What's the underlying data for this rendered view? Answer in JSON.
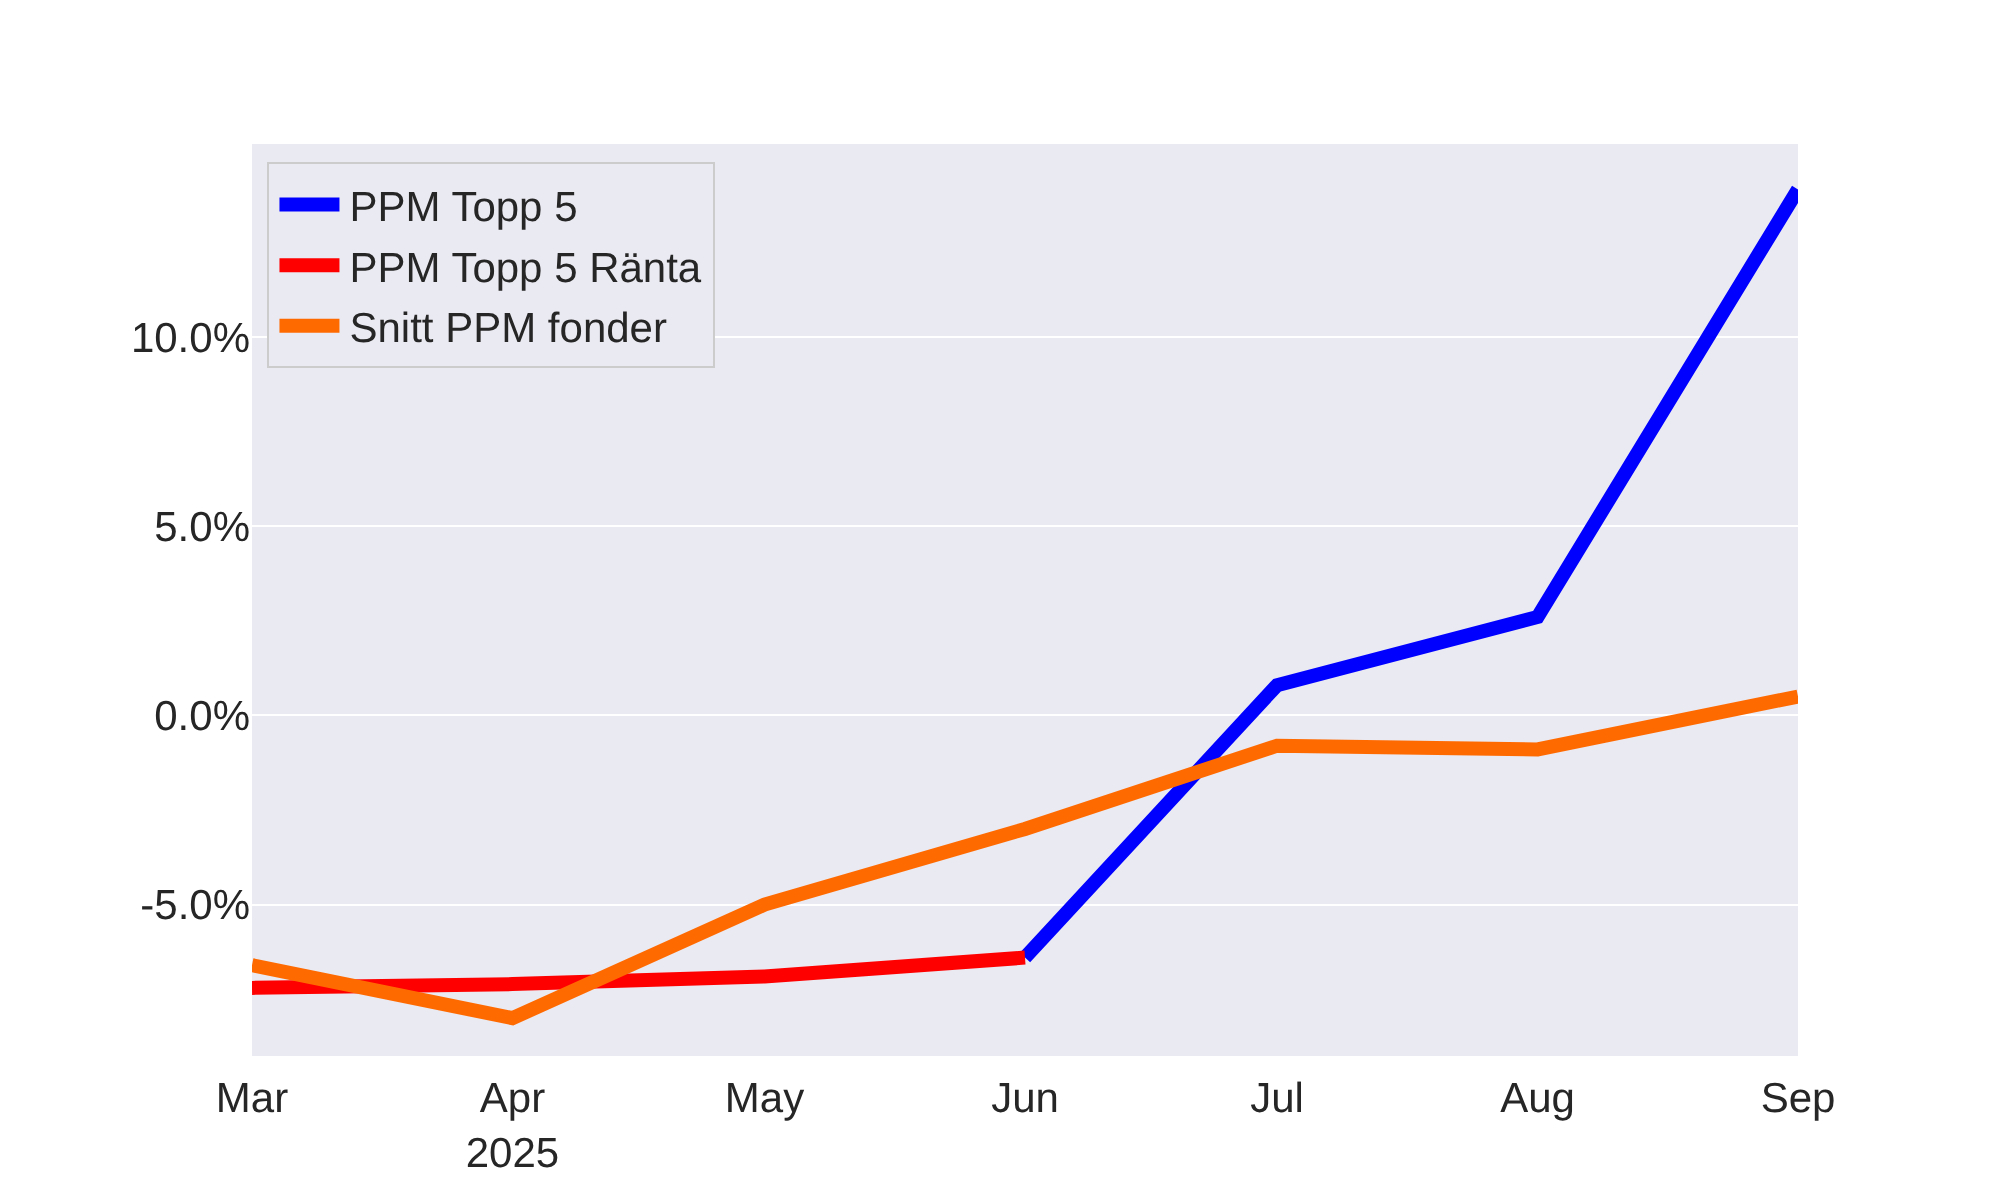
{
  "chart_data": {
    "type": "line",
    "x": [
      "2025-03",
      "2025-04",
      "2025-05",
      "2025-06",
      "2025-07",
      "2025-08",
      "2025-09"
    ],
    "series": [
      {
        "name": "PPM Topp 5",
        "color": "#0000ff",
        "values": [
          null,
          null,
          null,
          -6.4,
          0.8,
          2.6,
          13.9
        ]
      },
      {
        "name": "PPM Topp 5 Ränta",
        "color": "#ff0000",
        "values": [
          -7.2,
          -7.1,
          -6.9,
          -6.4,
          null,
          null,
          null
        ]
      },
      {
        "name": "Snitt PPM fonder",
        "color": "#ff6a00",
        "values": [
          -6.6,
          -8.0,
          -5.0,
          -3.0,
          -0.8,
          -0.9,
          0.5
        ]
      }
    ],
    "xlim": [
      "2025-03",
      "2025-09"
    ],
    "xticks": [
      {
        "value": "2025-03",
        "label": "Mar"
      },
      {
        "value": "2025-04",
        "label": "Apr\n2025"
      },
      {
        "value": "2025-05",
        "label": "May"
      },
      {
        "value": "2025-06",
        "label": "Jun"
      },
      {
        "value": "2025-07",
        "label": "Jul"
      },
      {
        "value": "2025-08",
        "label": "Aug"
      },
      {
        "value": "2025-09",
        "label": "Sep"
      }
    ],
    "ylim": [
      -9.0,
      15.1
    ],
    "yticks": [
      {
        "value": -5,
        "label": "-5.0%"
      },
      {
        "value": 0,
        "label": "0.0%"
      },
      {
        "value": 5,
        "label": "5.0%"
      },
      {
        "value": 10,
        "label": "10.0%"
      }
    ],
    "grid": "y",
    "legend": "top left",
    "line_style": "solid",
    "marker": "none"
  }
}
